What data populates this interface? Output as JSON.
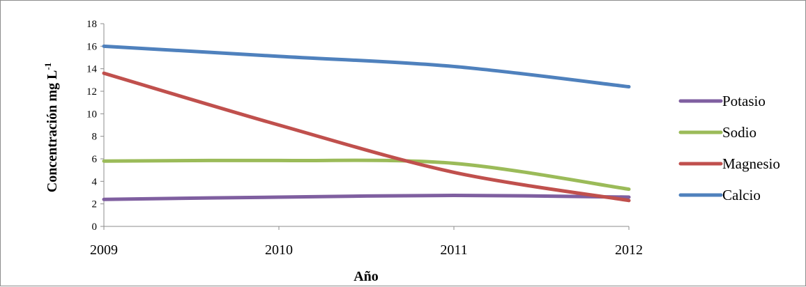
{
  "chart_data": {
    "type": "line",
    "x": [
      "2009",
      "2010",
      "2011",
      "2012"
    ],
    "xlabel": "Año",
    "ylabel_main": "Concentración   mg L",
    "ylabel_sup": "-1",
    "ylim": [
      0,
      18
    ],
    "yticks": [
      0,
      2,
      4,
      6,
      8,
      10,
      12,
      14,
      16,
      18
    ],
    "grid": false,
    "legend_position": "right",
    "series": [
      {
        "name": "Potasio",
        "color": "#7f5fa0",
        "values": [
          2.4,
          2.6,
          2.75,
          2.6
        ]
      },
      {
        "name": "Sodio",
        "color": "#9bbb59",
        "values": [
          5.8,
          5.85,
          5.6,
          3.3
        ]
      },
      {
        "name": "Magnesio",
        "color": "#c0504d",
        "values": [
          13.6,
          9.0,
          4.8,
          2.3
        ]
      },
      {
        "name": "Calcio",
        "color": "#4f81bd",
        "values": [
          16.0,
          15.1,
          14.2,
          12.4
        ]
      }
    ]
  }
}
